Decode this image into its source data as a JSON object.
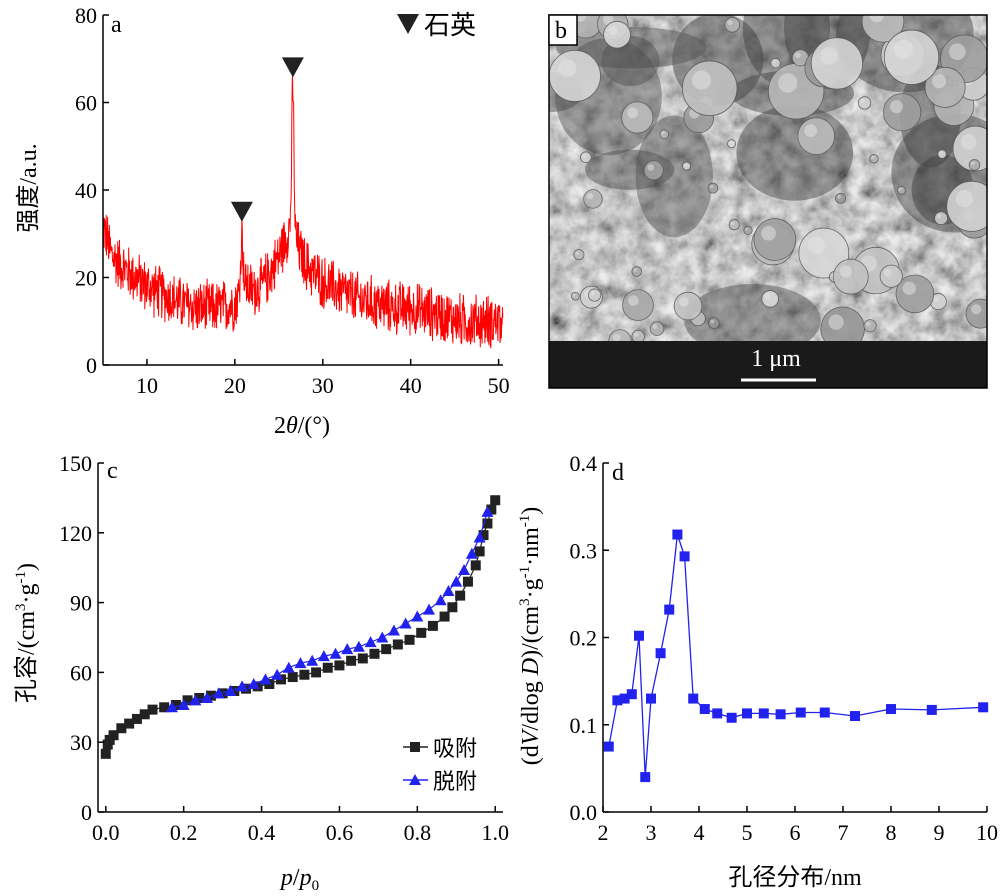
{
  "chart_data": [
    {
      "panel": "a",
      "type": "line",
      "xlabel_parts": [
        "2",
        "θ",
        "/(°)"
      ],
      "ylabel": "强度/a.u.",
      "xlim": [
        5,
        50.5
      ],
      "ylim": [
        0,
        80
      ],
      "xticks": [
        "10",
        "20",
        "30",
        "40",
        "50"
      ],
      "yticks": [
        "0",
        "20",
        "40",
        "60",
        "80"
      ],
      "series_color": "#ff0000",
      "legend": {
        "marker": "inverted-triangle",
        "label": "石英",
        "placement": "top-right"
      },
      "envelope": {
        "x": [
          5,
          6,
          8,
          10,
          12,
          14,
          16,
          18,
          20,
          21,
          22,
          23,
          24,
          25,
          26,
          26.5,
          27,
          28,
          30,
          32,
          34,
          36,
          38,
          40,
          42,
          44,
          46,
          48,
          50,
          50.5
        ],
        "y": [
          32,
          25,
          21,
          18,
          16,
          14,
          13,
          13,
          14,
          19,
          17,
          18,
          21,
          25,
          30,
          34,
          28,
          23,
          19,
          17,
          15,
          14,
          13,
          13,
          12,
          11,
          10,
          10,
          10,
          8
        ]
      },
      "peaks": [
        {
          "x": 20.8,
          "y": 30,
          "marker": true
        },
        {
          "x": 26.6,
          "y": 63,
          "marker": true
        }
      ],
      "noise_amplitude": 7
    },
    {
      "panel": "b",
      "type": "image",
      "label": "b",
      "scalebar": "1 μm"
    },
    {
      "panel": "c",
      "type": "line",
      "xlabel_parts": [
        "p",
        "/",
        "p",
        "0"
      ],
      "ylabel_parts": [
        "孔容/(cm",
        "3",
        "·g",
        "-1",
        ")"
      ],
      "xlim": [
        -0.02,
        1.02
      ],
      "ylim": [
        0,
        150
      ],
      "xticks": [
        "0.0",
        "0.2",
        "0.4",
        "0.6",
        "0.8",
        "1.0"
      ],
      "xtick_values": [
        0,
        0.2,
        0.4,
        0.6,
        0.8,
        1.0
      ],
      "yticks": [
        "0",
        "30",
        "60",
        "90",
        "120",
        "150"
      ],
      "legend_placement": "bottom-right",
      "series": [
        {
          "name": "吸附",
          "color": "#222222",
          "marker": "square",
          "x": [
            0.0,
            0.005,
            0.01,
            0.02,
            0.04,
            0.06,
            0.08,
            0.1,
            0.12,
            0.15,
            0.18,
            0.21,
            0.24,
            0.27,
            0.3,
            0.33,
            0.36,
            0.39,
            0.42,
            0.45,
            0.48,
            0.51,
            0.54,
            0.57,
            0.6,
            0.63,
            0.66,
            0.69,
            0.72,
            0.75,
            0.78,
            0.81,
            0.84,
            0.87,
            0.89,
            0.91,
            0.93,
            0.95,
            0.96,
            0.97,
            0.98,
            0.99,
            1.0
          ],
          "y": [
            25,
            29,
            31,
            33,
            36,
            38,
            40,
            42,
            44,
            45,
            46,
            48,
            49,
            50,
            51,
            52,
            53,
            54,
            55,
            57,
            58,
            59,
            60,
            62,
            63,
            65,
            66,
            68,
            70,
            72,
            74,
            77,
            80,
            84,
            88,
            93,
            99,
            106,
            112,
            119,
            124,
            130,
            134
          ]
        },
        {
          "name": "脱附",
          "color": "#2222ee",
          "marker": "triangle",
          "x": [
            0.17,
            0.2,
            0.23,
            0.26,
            0.29,
            0.32,
            0.35,
            0.38,
            0.41,
            0.44,
            0.47,
            0.5,
            0.53,
            0.56,
            0.59,
            0.62,
            0.65,
            0.68,
            0.71,
            0.74,
            0.77,
            0.8,
            0.83,
            0.86,
            0.88,
            0.9,
            0.92,
            0.94,
            0.96,
            0.98
          ],
          "y": [
            45,
            46,
            48,
            49,
            51,
            52,
            54,
            55,
            57,
            59,
            62,
            64,
            65,
            67,
            68,
            70,
            71,
            73,
            75,
            78,
            81,
            84,
            87,
            91,
            95,
            99,
            104,
            111,
            118,
            129
          ]
        }
      ]
    },
    {
      "panel": "d",
      "type": "line",
      "xlabel": "孔径分布/nm",
      "ylabel_parts": [
        "(d",
        "V",
        "/dlog ",
        "D",
        ")/(cm",
        "3",
        "·g",
        "-1",
        "·nm",
        "-1",
        ")"
      ],
      "xlim": [
        2,
        10
      ],
      "ylim": [
        0,
        0.4
      ],
      "xticks": [
        "2",
        "3",
        "4",
        "5",
        "6",
        "7",
        "8",
        "9",
        "10"
      ],
      "yticks": [
        "0.0",
        "0.1",
        "0.2",
        "0.3",
        "0.4"
      ],
      "series": [
        {
          "name": "",
          "color": "#2222ee",
          "marker": "square",
          "x": [
            2.12,
            2.3,
            2.45,
            2.6,
            2.75,
            2.88,
            3.0,
            3.2,
            3.38,
            3.55,
            3.7,
            3.88,
            4.12,
            4.38,
            4.68,
            5.0,
            5.35,
            5.7,
            6.12,
            6.62,
            7.25,
            8.0,
            8.85,
            9.92
          ],
          "y": [
            0.075,
            0.128,
            0.13,
            0.135,
            0.202,
            0.04,
            0.13,
            0.182,
            0.232,
            0.318,
            0.293,
            0.13,
            0.118,
            0.113,
            0.108,
            0.113,
            0.113,
            0.112,
            0.114,
            0.114,
            0.11,
            0.118,
            0.117,
            0.12
          ]
        }
      ]
    }
  ]
}
